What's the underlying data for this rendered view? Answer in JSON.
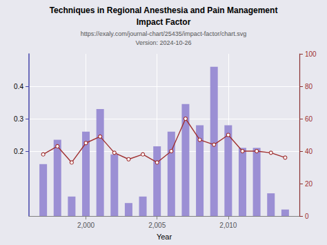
{
  "chart_data": {
    "type": "bar",
    "title": "Techniques in Regional Anesthesia and Pain Management\nImpact Factor",
    "subtitle": "https://exaly.com/journal-chart/25435/impact-factor/chart.svg",
    "annotations": [
      "Version: 2024-10-26"
    ],
    "xlabel": "Year",
    "x": [
      1997,
      1998,
      1999,
      2000,
      2001,
      2002,
      2003,
      2004,
      2005,
      2006,
      2007,
      2008,
      2009,
      2010,
      2011,
      2012,
      2013,
      2014
    ],
    "series": [
      {
        "type": "bar",
        "color": "#9b8fd4",
        "values": [
          0.16,
          0.235,
          0.06,
          0.26,
          0.33,
          0.19,
          0.04,
          0.06,
          0.215,
          0.26,
          0.345,
          0.28,
          0.46,
          0.28,
          0.21,
          0.21,
          0.07,
          0.02
        ]
      },
      {
        "type": "line",
        "axis": "y2",
        "color": "#a03030",
        "marker": "circle",
        "values": [
          38,
          43,
          33,
          45,
          49,
          39,
          35,
          38,
          33,
          40,
          60,
          47,
          44,
          50,
          40,
          40,
          39,
          36
        ]
      }
    ],
    "xlim": [
      1996,
      2015
    ],
    "xticks": [
      2000,
      2005,
      2010
    ],
    "ylim": [
      0,
      0.5
    ],
    "yticks": [
      0.2,
      0.3,
      0.4
    ],
    "y2lim": [
      0,
      100
    ],
    "y2ticks": [
      0,
      20,
      40,
      60,
      80,
      100
    ],
    "grid": true
  }
}
